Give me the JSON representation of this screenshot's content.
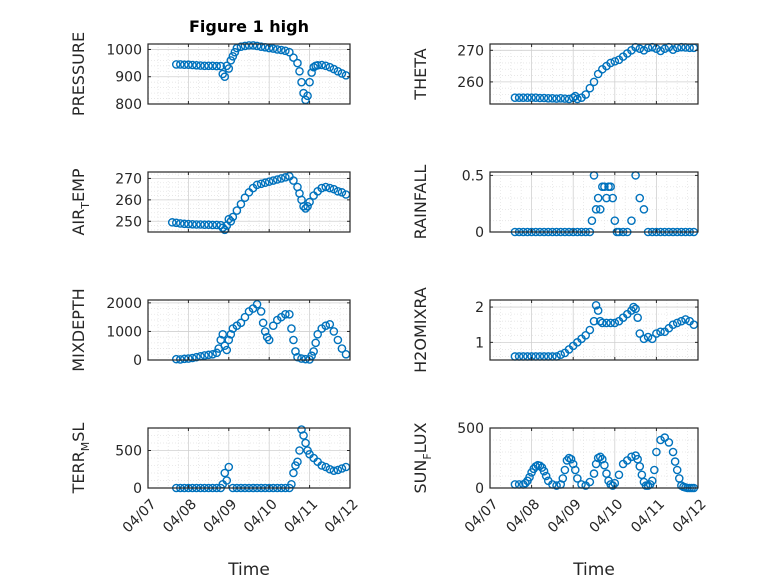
{
  "chart_data": [
    {
      "type": "scatter",
      "title": "Figure 1 high",
      "ylabel": "PRESSURE",
      "xlabel": "",
      "xlim": [
        "04/07",
        "04/12"
      ],
      "x_ticks": [
        "04/07",
        "04/08",
        "04/09",
        "04/10",
        "04/11",
        "04/12"
      ],
      "ylim": [
        800,
        1020
      ],
      "y_ticks": [
        "800",
        "900",
        "1000"
      ],
      "grid": true,
      "series": [
        {
          "x": [
            0.7,
            0.8,
            0.9,
            1.0,
            1.1,
            1.2,
            1.3,
            1.4,
            1.5,
            1.6,
            1.7,
            1.8,
            1.85,
            1.9,
            1.95,
            2.0,
            2.05,
            2.1,
            2.15,
            2.2,
            2.3,
            2.4,
            2.5,
            2.6,
            2.7,
            2.8,
            2.9,
            3.0,
            3.1,
            3.2,
            3.3,
            3.4,
            3.5,
            3.6,
            3.7,
            3.75,
            3.8,
            3.85,
            3.9,
            3.95,
            4.0,
            4.05,
            4.1,
            4.15,
            4.2,
            4.3,
            4.4,
            4.5,
            4.6,
            4.7,
            4.8,
            4.9
          ],
          "y": [
            945,
            945,
            944,
            944,
            943,
            942,
            941,
            940,
            940,
            940,
            939,
            939,
            910,
            900,
            940,
            930,
            960,
            975,
            990,
            1005,
            1010,
            1013,
            1015,
            1015,
            1013,
            1010,
            1008,
            1005,
            1003,
            1000,
            998,
            995,
            990,
            970,
            950,
            920,
            880,
            840,
            815,
            830,
            880,
            915,
            935,
            940,
            942,
            943,
            940,
            935,
            928,
            920,
            912,
            905
          ]
        }
      ]
    },
    {
      "type": "scatter",
      "ylabel": "THETA",
      "xlabel": "",
      "xlim": [
        "04/07",
        "04/12"
      ],
      "x_ticks": [
        "04/07",
        "04/08",
        "04/09",
        "04/10",
        "04/11",
        "04/12"
      ],
      "ylim": [
        253,
        272
      ],
      "y_ticks": [
        "260",
        "270"
      ],
      "grid": true,
      "series": [
        {
          "x": [
            0.6,
            0.7,
            0.8,
            0.9,
            1.0,
            1.1,
            1.2,
            1.3,
            1.4,
            1.5,
            1.6,
            1.7,
            1.8,
            1.9,
            2.0,
            2.05,
            2.1,
            2.2,
            2.3,
            2.4,
            2.5,
            2.6,
            2.7,
            2.8,
            2.9,
            3.0,
            3.1,
            3.2,
            3.3,
            3.4,
            3.5,
            3.6,
            3.7,
            3.8,
            3.9,
            4.0,
            4.1,
            4.2,
            4.3,
            4.4,
            4.5,
            4.6,
            4.7,
            4.8,
            4.9
          ],
          "y": [
            255,
            255,
            255,
            255,
            255,
            255,
            254.9,
            254.9,
            254.8,
            254.8,
            254.7,
            254.8,
            254.7,
            254.6,
            255,
            255.5,
            254.6,
            255,
            256,
            258,
            260,
            262.5,
            264,
            265,
            266,
            266.5,
            267,
            268,
            269,
            270,
            271,
            270.5,
            270,
            270.8,
            271,
            270.5,
            269.8,
            270.5,
            271,
            270.2,
            270.8,
            271,
            270.9,
            270.8,
            270.8
          ]
        }
      ]
    },
    {
      "type": "scatter",
      "ylabel": "AIR_TEMP",
      "ylabel_main": "AIR",
      "ylabel_sub": "T",
      "ylabel_rest": "EMP",
      "xlabel": "",
      "xlim": [
        "04/07",
        "04/12"
      ],
      "x_ticks": [
        "04/07",
        "04/08",
        "04/09",
        "04/10",
        "04/11",
        "04/12"
      ],
      "ylim": [
        245,
        273
      ],
      "y_ticks": [
        "250",
        "260",
        "270"
      ],
      "grid": true,
      "series": [
        {
          "x": [
            0.6,
            0.7,
            0.8,
            0.9,
            1.0,
            1.1,
            1.2,
            1.3,
            1.4,
            1.5,
            1.6,
            1.7,
            1.8,
            1.85,
            1.9,
            1.95,
            2.0,
            2.05,
            2.1,
            2.2,
            2.3,
            2.4,
            2.5,
            2.6,
            2.7,
            2.8,
            2.9,
            3.0,
            3.1,
            3.2,
            3.3,
            3.4,
            3.5,
            3.6,
            3.7,
            3.75,
            3.8,
            3.85,
            3.9,
            3.95,
            4.0,
            4.1,
            4.2,
            4.3,
            4.4,
            4.5,
            4.6,
            4.7,
            4.8,
            4.9
          ],
          "y": [
            249.5,
            249.3,
            249,
            248.8,
            248.7,
            248.6,
            248.5,
            248.5,
            248.4,
            248.4,
            248.3,
            248.3,
            248.2,
            247,
            246,
            248,
            251,
            250,
            252,
            255,
            258,
            261,
            263.5,
            265.5,
            267,
            267.5,
            268,
            268.5,
            269,
            269.5,
            270,
            270.5,
            271,
            269,
            266,
            263,
            260,
            257,
            256,
            257,
            259,
            262,
            264,
            265.5,
            266,
            265.5,
            265,
            264,
            263.5,
            262.5
          ]
        }
      ]
    },
    {
      "type": "scatter",
      "ylabel": "RAINFALL",
      "xlabel": "",
      "xlim": [
        "04/07",
        "04/12"
      ],
      "x_ticks": [
        "04/07",
        "04/08",
        "04/09",
        "04/10",
        "04/11",
        "04/12"
      ],
      "ylim": [
        0,
        0.53
      ],
      "y_ticks": [
        "0",
        "0.5"
      ],
      "grid": true,
      "series": [
        {
          "x": [
            0.6,
            0.7,
            0.8,
            0.9,
            1.0,
            1.1,
            1.2,
            1.3,
            1.4,
            1.5,
            1.6,
            1.7,
            1.8,
            1.9,
            2.0,
            2.1,
            2.2,
            2.3,
            2.4,
            2.45,
            2.5,
            2.55,
            2.6,
            2.65,
            2.7,
            2.75,
            2.8,
            2.85,
            2.9,
            2.95,
            3.0,
            3.05,
            3.1,
            3.2,
            3.3,
            3.4,
            3.5,
            3.6,
            3.7,
            3.8,
            3.9,
            4.0,
            4.1,
            4.2,
            4.3,
            4.4,
            4.5,
            4.6,
            4.7,
            4.8,
            4.9
          ],
          "y": [
            0,
            0,
            0,
            0,
            0,
            0,
            0,
            0,
            0,
            0,
            0,
            0,
            0,
            0,
            0,
            0,
            0,
            0,
            0,
            0.1,
            0.5,
            0.2,
            0.3,
            0.2,
            0.4,
            0.4,
            0.3,
            0.4,
            0.4,
            0.3,
            0.1,
            0,
            0,
            0,
            0,
            0.1,
            0.5,
            0.3,
            0.2,
            0,
            0,
            0,
            0,
            0,
            0,
            0,
            0,
            0,
            0,
            0,
            0
          ]
        }
      ]
    },
    {
      "type": "scatter",
      "ylabel": "MIXDEPTH",
      "xlabel": "",
      "xlim": [
        "04/07",
        "04/12"
      ],
      "x_ticks": [
        "04/07",
        "04/08",
        "04/09",
        "04/10",
        "04/11",
        "04/12"
      ],
      "ylim": [
        0,
        2100
      ],
      "y_ticks": [
        "0",
        "1000",
        "2000"
      ],
      "grid": true,
      "series": [
        {
          "x": [
            0.7,
            0.8,
            0.9,
            1.0,
            1.1,
            1.2,
            1.3,
            1.4,
            1.5,
            1.6,
            1.7,
            1.75,
            1.8,
            1.85,
            1.9,
            1.95,
            2.0,
            2.05,
            2.1,
            2.2,
            2.3,
            2.4,
            2.5,
            2.6,
            2.7,
            2.8,
            2.85,
            2.9,
            2.95,
            3.0,
            3.1,
            3.2,
            3.3,
            3.4,
            3.5,
            3.55,
            3.6,
            3.65,
            3.7,
            3.8,
            3.9,
            4.0,
            4.05,
            4.1,
            4.15,
            4.2,
            4.3,
            4.4,
            4.5,
            4.6,
            4.7,
            4.8,
            4.9
          ],
          "y": [
            30,
            20,
            40,
            50,
            70,
            100,
            130,
            160,
            180,
            200,
            250,
            400,
            700,
            900,
            500,
            350,
            700,
            900,
            1100,
            1200,
            1300,
            1500,
            1700,
            1800,
            1950,
            1700,
            1300,
            1000,
            800,
            700,
            1200,
            1400,
            1500,
            1600,
            1600,
            1100,
            700,
            300,
            100,
            50,
            30,
            20,
            150,
            300,
            600,
            900,
            1100,
            1200,
            1250,
            1000,
            700,
            400,
            200
          ]
        }
      ]
    },
    {
      "type": "scatter",
      "ylabel": "H2OMIXRA",
      "xlabel": "",
      "xlim": [
        "04/07",
        "04/12"
      ],
      "x_ticks": [
        "04/07",
        "04/08",
        "04/09",
        "04/10",
        "04/11",
        "04/12"
      ],
      "ylim": [
        0.5,
        2.2
      ],
      "y_ticks": [
        "1",
        "2"
      ],
      "grid": true,
      "series": [
        {
          "x": [
            0.6,
            0.7,
            0.8,
            0.9,
            1.0,
            1.1,
            1.2,
            1.3,
            1.4,
            1.5,
            1.6,
            1.7,
            1.8,
            1.9,
            2.0,
            2.1,
            2.2,
            2.3,
            2.4,
            2.5,
            2.55,
            2.6,
            2.65,
            2.7,
            2.8,
            2.9,
            3.0,
            3.1,
            3.2,
            3.3,
            3.4,
            3.45,
            3.5,
            3.55,
            3.6,
            3.7,
            3.8,
            3.9,
            4.0,
            4.1,
            4.2,
            4.3,
            4.4,
            4.5,
            4.6,
            4.7,
            4.8,
            4.9
          ],
          "y": [
            0.6,
            0.6,
            0.6,
            0.6,
            0.6,
            0.6,
            0.6,
            0.6,
            0.6,
            0.6,
            0.6,
            0.65,
            0.7,
            0.8,
            0.9,
            1.0,
            1.1,
            1.2,
            1.35,
            1.6,
            2.05,
            1.9,
            1.6,
            1.55,
            1.55,
            1.55,
            1.55,
            1.6,
            1.7,
            1.8,
            1.9,
            2.0,
            1.95,
            1.7,
            1.25,
            1.1,
            1.15,
            1.1,
            1.25,
            1.3,
            1.3,
            1.4,
            1.5,
            1.55,
            1.6,
            1.65,
            1.6,
            1.5
          ]
        }
      ]
    },
    {
      "type": "scatter",
      "ylabel": "TERR_MSL",
      "ylabel_main": "TERR",
      "ylabel_sub": "M",
      "ylabel_rest": "SL",
      "xlabel": "Time",
      "xlim": [
        "04/07",
        "04/12"
      ],
      "x_ticks": [
        "04/07",
        "04/08",
        "04/09",
        "04/10",
        "04/11",
        "04/12"
      ],
      "ylim": [
        0,
        800
      ],
      "y_ticks": [
        "0",
        "500"
      ],
      "grid": true,
      "series": [
        {
          "x": [
            0.7,
            0.8,
            0.9,
            1.0,
            1.1,
            1.2,
            1.3,
            1.4,
            1.5,
            1.6,
            1.7,
            1.8,
            1.85,
            1.9,
            1.95,
            2.0,
            2.1,
            2.2,
            2.3,
            2.4,
            2.5,
            2.6,
            2.7,
            2.8,
            2.9,
            3.0,
            3.1,
            3.2,
            3.3,
            3.4,
            3.5,
            3.55,
            3.6,
            3.65,
            3.7,
            3.75,
            3.8,
            3.85,
            3.9,
            3.95,
            4.0,
            4.1,
            4.2,
            4.3,
            4.4,
            4.5,
            4.6,
            4.7,
            4.8,
            4.9
          ],
          "y": [
            0,
            0,
            0,
            0,
            0,
            0,
            0,
            0,
            0,
            0,
            0,
            0,
            50,
            200,
            100,
            280,
            0,
            0,
            0,
            0,
            0,
            0,
            0,
            0,
            0,
            0,
            0,
            0,
            0,
            0,
            0,
            50,
            200,
            300,
            350,
            500,
            780,
            700,
            600,
            500,
            450,
            400,
            350,
            300,
            280,
            250,
            230,
            240,
            260,
            280
          ]
        }
      ]
    },
    {
      "type": "scatter",
      "ylabel": "SUN_FLUX",
      "ylabel_main": "SUN",
      "ylabel_sub": "F",
      "ylabel_rest": "LUX",
      "xlabel": "Time",
      "xlim": [
        "04/07",
        "04/12"
      ],
      "x_ticks": [
        "04/07",
        "04/08",
        "04/09",
        "04/10",
        "04/11",
        "04/12"
      ],
      "ylim": [
        0,
        500
      ],
      "y_ticks": [
        "0",
        "500"
      ],
      "grid": true,
      "series": [
        {
          "x": [
            0.6,
            0.7,
            0.8,
            0.85,
            0.9,
            0.95,
            1.0,
            1.05,
            1.1,
            1.15,
            1.2,
            1.25,
            1.3,
            1.35,
            1.4,
            1.5,
            1.6,
            1.7,
            1.75,
            1.8,
            1.85,
            1.9,
            1.95,
            2.0,
            2.05,
            2.1,
            2.2,
            2.3,
            2.4,
            2.5,
            2.55,
            2.6,
            2.65,
            2.7,
            2.75,
            2.8,
            2.85,
            2.9,
            2.95,
            3.0,
            3.1,
            3.2,
            3.3,
            3.4,
            3.5,
            3.55,
            3.6,
            3.65,
            3.7,
            3.75,
            3.8,
            3.85,
            3.9,
            3.95,
            4.0,
            4.1,
            4.2,
            4.3,
            4.4,
            4.45,
            4.5,
            4.55,
            4.6,
            4.65,
            4.7,
            4.75,
            4.8,
            4.85,
            4.9
          ],
          "y": [
            30,
            30,
            30,
            40,
            60,
            90,
            130,
            160,
            180,
            190,
            185,
            170,
            140,
            100,
            60,
            30,
            20,
            30,
            80,
            150,
            230,
            250,
            240,
            200,
            150,
            80,
            30,
            20,
            50,
            120,
            200,
            250,
            260,
            240,
            190,
            120,
            60,
            30,
            20,
            40,
            110,
            200,
            230,
            260,
            270,
            240,
            180,
            110,
            50,
            20,
            20,
            30,
            60,
            150,
            300,
            400,
            420,
            380,
            300,
            220,
            150,
            80,
            20,
            10,
            5,
            0,
            0,
            0,
            0
          ]
        }
      ]
    }
  ]
}
